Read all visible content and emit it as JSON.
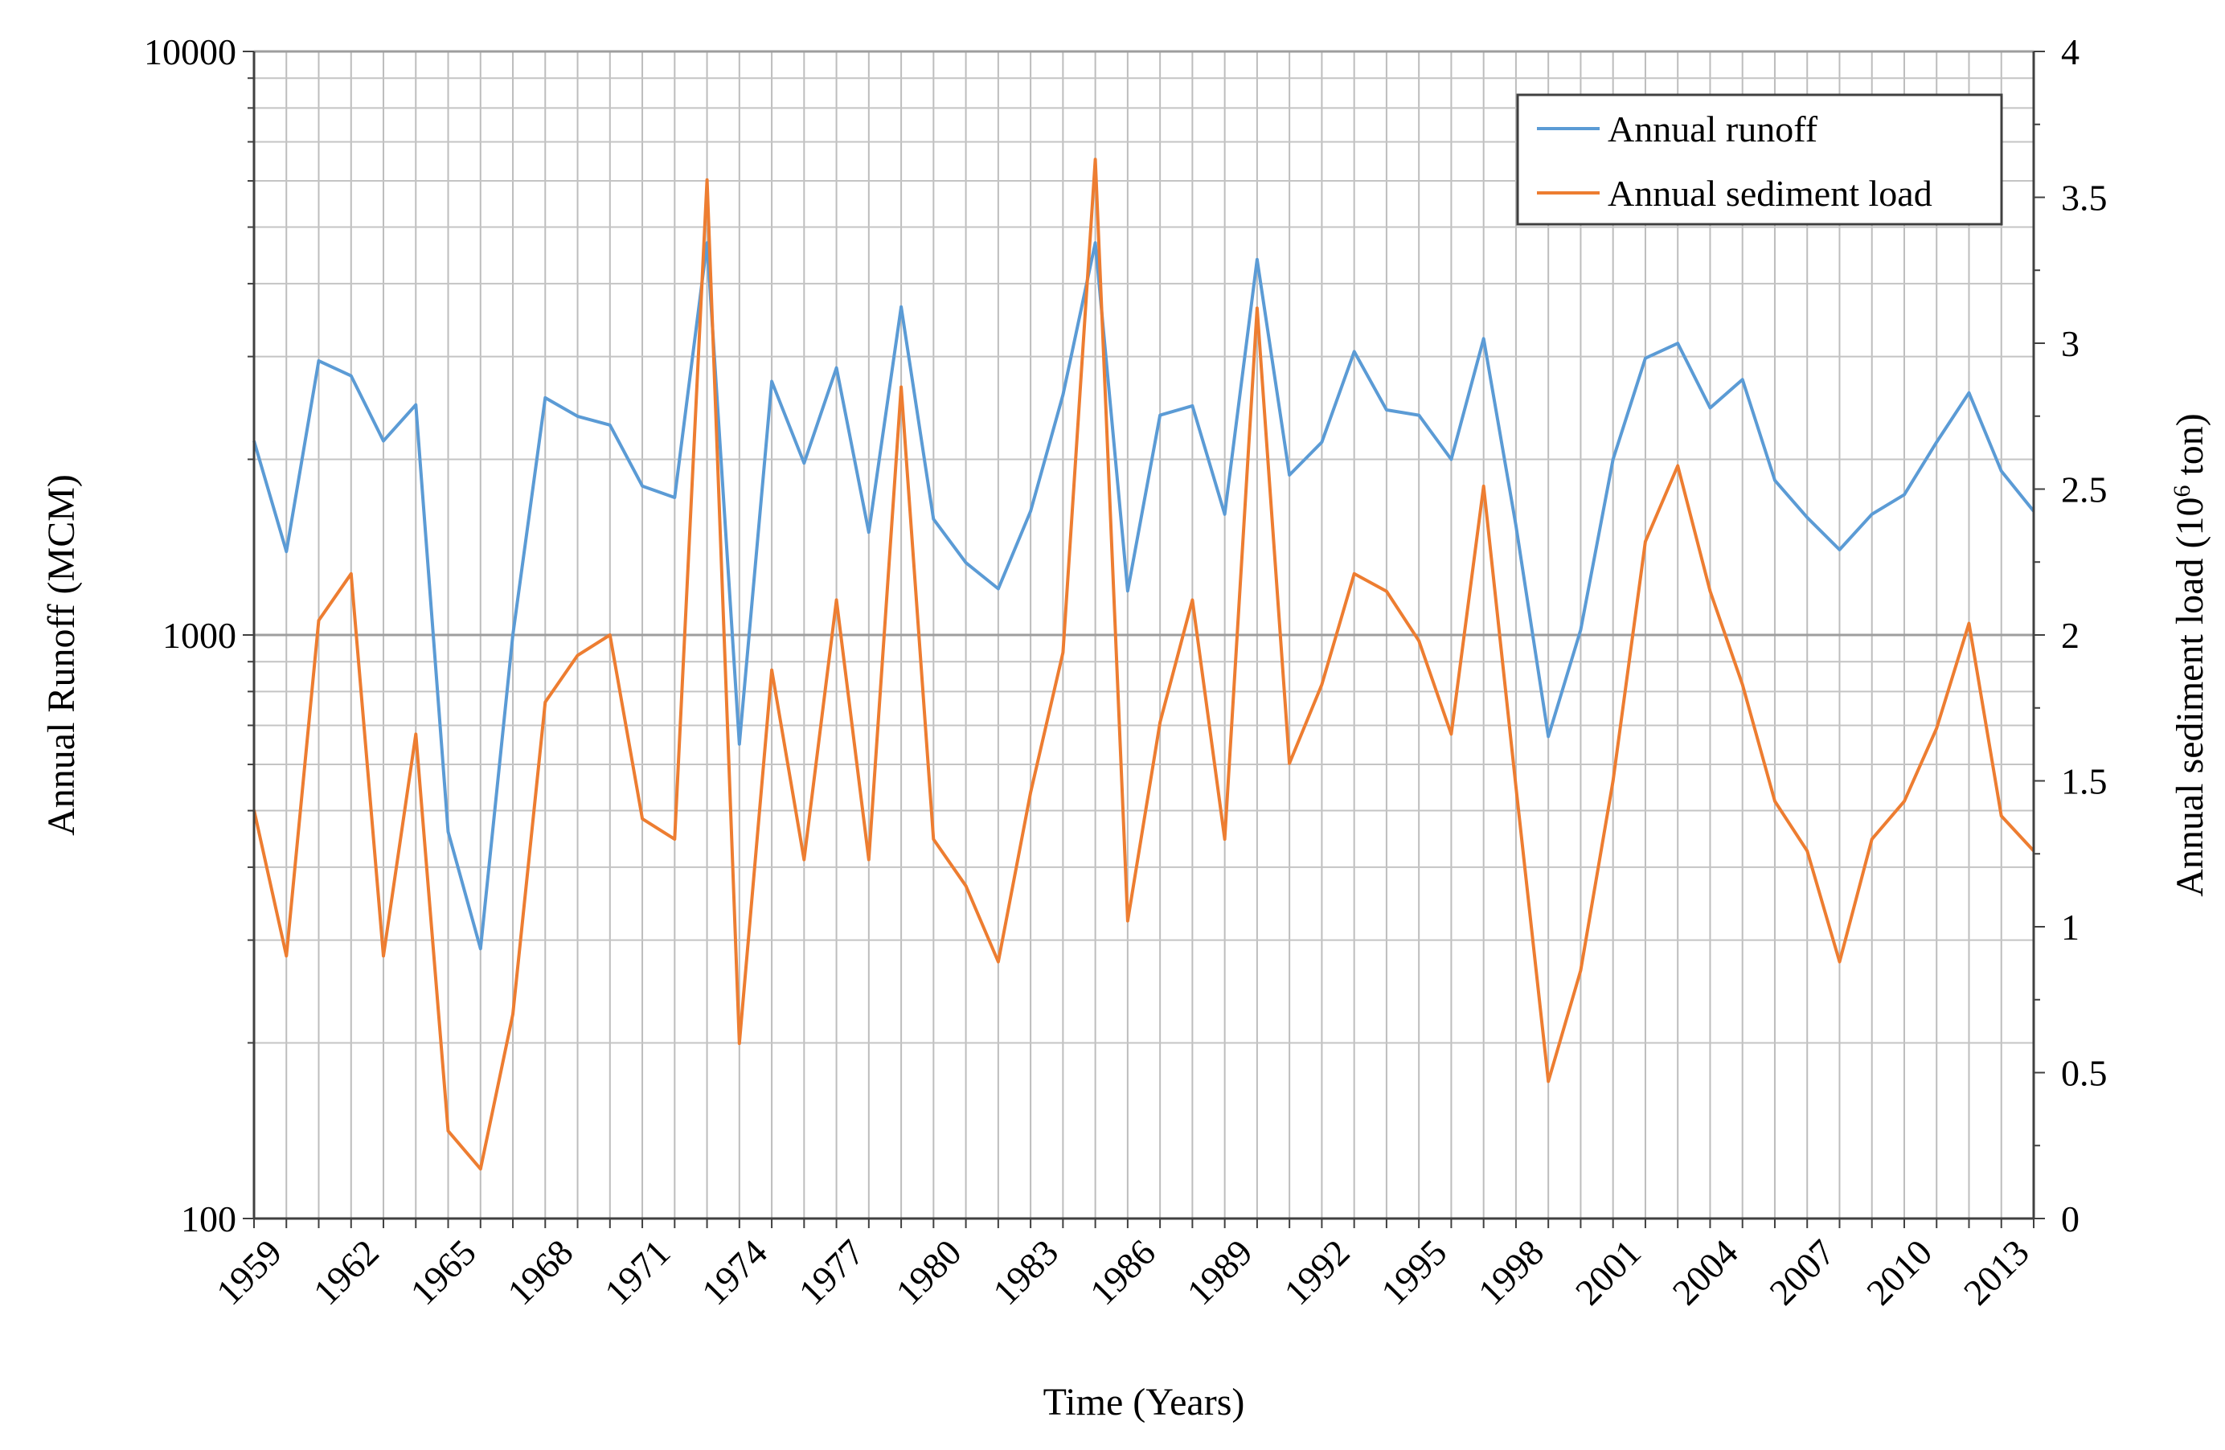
{
  "chart_data": {
    "type": "line",
    "title": "",
    "xlabel": "Time (Years)",
    "ylabel_left": "Annual Runoff (MCM)",
    "ylabel_right_prefix": "Annual sediment load (10",
    "ylabel_right_exp": "6",
    "ylabel_right_suffix": " ton)",
    "x_start": 1959,
    "x_end": 2014,
    "x_tick_labels": [
      "1959",
      "1962",
      "1965",
      "1968",
      "1971",
      "1974",
      "1977",
      "1980",
      "1983",
      "1986",
      "1989",
      "1992",
      "1995",
      "1998",
      "2001",
      "2004",
      "2007",
      "2010",
      "2013"
    ],
    "y_left_scale": "log",
    "y_left_lim": [
      100,
      10000
    ],
    "y_left_tick_labels": [
      "100",
      "1000",
      "10000"
    ],
    "y_right_lim": [
      0,
      4
    ],
    "y_right_tick_labels": [
      "0",
      "0.5",
      "1",
      "1.5",
      "2",
      "2.5",
      "3",
      "3.5",
      "4"
    ],
    "grid": true,
    "legend_position": "top-right",
    "series": [
      {
        "name": "Annual runoff",
        "axis": "left",
        "color": "#5b9bd5",
        "values": [
          2150,
          1390,
          2950,
          2780,
          2150,
          2480,
          460,
          290,
          1000,
          2550,
          2370,
          2290,
          1800,
          1720,
          4700,
          650,
          2720,
          1970,
          2870,
          1500,
          3650,
          1580,
          1330,
          1200,
          1630,
          2580,
          4700,
          1190,
          2380,
          2470,
          1610,
          4400,
          1880,
          2140,
          3060,
          2430,
          2380,
          2000,
          3220,
          1540,
          670,
          1020,
          2000,
          2980,
          3160,
          2450,
          2740,
          1840,
          1590,
          1400,
          1610,
          1740,
          2140,
          2600,
          1910,
          1630
        ]
      },
      {
        "name": "Annual sediment load",
        "axis": "right",
        "color": "#ed7d31",
        "values": [
          1.4,
          0.9,
          2.05,
          2.21,
          0.9,
          1.66,
          0.3,
          0.17,
          0.7,
          1.77,
          1.93,
          2.0,
          1.37,
          1.3,
          3.56,
          0.6,
          1.88,
          1.23,
          2.12,
          1.23,
          2.85,
          1.3,
          1.14,
          0.88,
          1.46,
          1.94,
          3.63,
          1.02,
          1.7,
          2.12,
          1.3,
          3.12,
          1.56,
          1.83,
          2.21,
          2.15,
          1.98,
          1.66,
          2.51,
          1.48,
          0.47,
          0.85,
          1.5,
          2.32,
          2.58,
          2.15,
          1.83,
          1.43,
          1.26,
          0.88,
          1.3,
          1.43,
          1.68,
          2.04,
          1.38,
          1.26
        ]
      }
    ]
  }
}
